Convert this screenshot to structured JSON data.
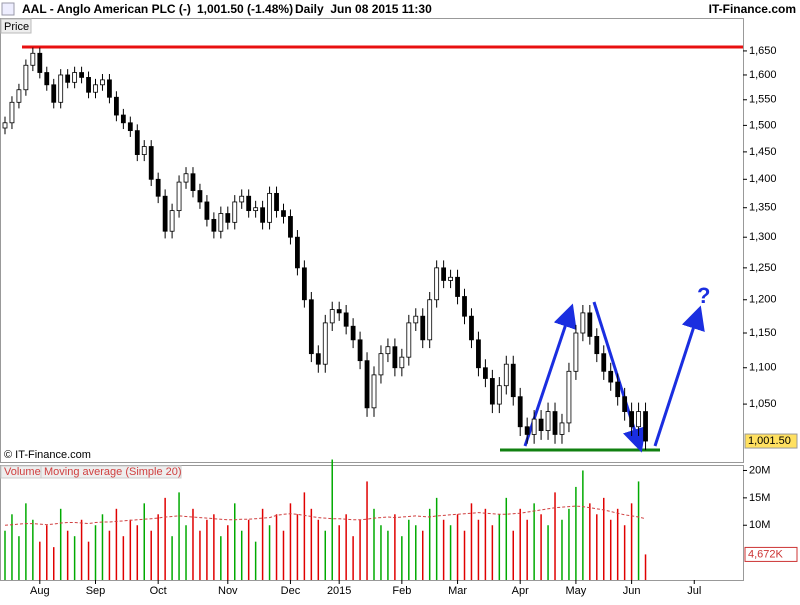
{
  "chart_data": {
    "type": "candlestick",
    "title": "AAL - Anglo American PLC (-)",
    "last_change": "1,001.50 (-1.48%)",
    "period": "Daily  Jun 08 2015 11:30",
    "brand": "IT-Finance.com",
    "price_label": "Price",
    "copyright": "© IT-Finance.com",
    "last_price_label": "1,001.50",
    "annotation": "?",
    "log_scale": true,
    "up_color": "#00aa00",
    "down_color": "#e00000",
    "categories": [
      null,
      null,
      null,
      null,
      null,
      "Aug",
      null,
      null,
      null,
      null,
      null,
      null,
      null,
      "Sep",
      null,
      null,
      null,
      null,
      null,
      null,
      null,
      null,
      "Oct",
      null,
      null,
      null,
      null,
      null,
      null,
      null,
      null,
      null,
      "Nov",
      null,
      null,
      null,
      null,
      null,
      null,
      null,
      null,
      "Dec",
      null,
      null,
      null,
      null,
      null,
      null,
      "2015",
      null,
      null,
      null,
      null,
      null,
      null,
      null,
      null,
      "Feb",
      null,
      null,
      null,
      null,
      null,
      null,
      null,
      "Mar",
      null,
      null,
      null,
      null,
      null,
      null,
      null,
      null,
      "Apr",
      null,
      null,
      null,
      null,
      null,
      null,
      null,
      "May",
      null,
      null,
      null,
      null,
      null,
      null,
      null,
      "Jun",
      null,
      null,
      null,
      null,
      null,
      null,
      null,
      null,
      "Jul",
      null,
      null,
      null,
      null,
      null,
      null
    ],
    "open": [
      1495,
      1505,
      1545,
      1570,
      1620,
      1645,
      1605,
      1580,
      1545,
      1600,
      1585,
      1605,
      1595,
      1565,
      1580,
      1590,
      1555,
      1520,
      1505,
      1490,
      1445,
      1460,
      1400,
      1370,
      1310,
      1345,
      1395,
      1410,
      1380,
      1360,
      1330,
      1310,
      1340,
      1325,
      1360,
      1370,
      1345,
      1350,
      1325,
      1375,
      1345,
      1335,
      1300,
      1250,
      1200,
      1120,
      1105,
      1165,
      1185,
      1180,
      1160,
      1140,
      1110,
      1045,
      1090,
      1120,
      1130,
      1100,
      1115,
      1165,
      1175,
      1140,
      1200,
      1250,
      1230,
      1235,
      1205,
      1175,
      1140,
      1100,
      1085,
      1050,
      1075,
      1105,
      1060,
      1020,
      1010,
      1030,
      1015,
      1040,
      1010,
      1025,
      1095,
      1150,
      1180,
      1145,
      1120,
      1095,
      1080,
      1060,
      1040,
      1020,
      1040,
      null,
      null,
      null,
      null,
      null,
      null,
      null,
      null,
      null,
      null,
      null,
      null,
      null
    ],
    "high": [
      1517,
      1557,
      1582,
      1632,
      1657,
      1657,
      1617,
      1592,
      1612,
      1612,
      1617,
      1617,
      1607,
      1592,
      1602,
      1602,
      1567,
      1532,
      1517,
      1502,
      1472,
      1472,
      1412,
      1382,
      1357,
      1407,
      1422,
      1422,
      1392,
      1372,
      1342,
      1352,
      1352,
      1372,
      1382,
      1382,
      1362,
      1362,
      1387,
      1387,
      1357,
      1347,
      1312,
      1262,
      1212,
      1132,
      1177,
      1197,
      1197,
      1192,
      1172,
      1152,
      1122,
      1102,
      1132,
      1142,
      1142,
      1127,
      1177,
      1187,
      1187,
      1212,
      1262,
      1262,
      1247,
      1247,
      1217,
      1187,
      1152,
      1112,
      1097,
      1087,
      1117,
      1117,
      1072,
      1032,
      1042,
      1042,
      1052,
      1052,
      1037,
      1107,
      1162,
      1192,
      1192,
      1157,
      1132,
      1107,
      1092,
      1072,
      1052,
      1052,
      1052,
      null,
      null,
      null,
      null,
      null,
      null,
      null,
      null,
      null,
      null,
      null,
      null,
      null
    ],
    "low": [
      1483,
      1493,
      1533,
      1558,
      1608,
      1593,
      1568,
      1533,
      1533,
      1573,
      1573,
      1583,
      1553,
      1553,
      1568,
      1543,
      1508,
      1493,
      1478,
      1433,
      1433,
      1388,
      1358,
      1298,
      1298,
      1333,
      1383,
      1368,
      1348,
      1318,
      1298,
      1298,
      1313,
      1313,
      1348,
      1333,
      1333,
      1313,
      1313,
      1333,
      1323,
      1288,
      1238,
      1188,
      1108,
      1093,
      1093,
      1153,
      1168,
      1148,
      1128,
      1098,
      1033,
      1033,
      1078,
      1108,
      1088,
      1088,
      1103,
      1153,
      1128,
      1128,
      1188,
      1218,
      1218,
      1193,
      1163,
      1128,
      1088,
      1073,
      1038,
      1038,
      1063,
      1048,
      1008,
      998,
      998,
      1003,
      1003,
      998,
      998,
      1013,
      1083,
      1138,
      1133,
      1108,
      1083,
      1068,
      1048,
      1028,
      1008,
      1008,
      990,
      null,
      null,
      null,
      null,
      null,
      null,
      null,
      null,
      null,
      null,
      null,
      null,
      null
    ],
    "close": [
      1505,
      1545,
      1570,
      1620,
      1645,
      1605,
      1580,
      1545,
      1600,
      1585,
      1605,
      1595,
      1565,
      1580,
      1590,
      1555,
      1520,
      1505,
      1490,
      1445,
      1460,
      1400,
      1370,
      1310,
      1345,
      1395,
      1410,
      1380,
      1360,
      1330,
      1310,
      1340,
      1325,
      1360,
      1370,
      1345,
      1350,
      1325,
      1375,
      1345,
      1335,
      1300,
      1250,
      1200,
      1120,
      1105,
      1165,
      1185,
      1180,
      1160,
      1140,
      1110,
      1045,
      1090,
      1120,
      1130,
      1100,
      1115,
      1165,
      1175,
      1140,
      1200,
      1250,
      1230,
      1235,
      1205,
      1175,
      1140,
      1100,
      1085,
      1050,
      1075,
      1105,
      1060,
      1020,
      1010,
      1030,
      1015,
      1040,
      1010,
      1025,
      1095,
      1150,
      1180,
      1145,
      1120,
      1095,
      1080,
      1060,
      1040,
      1020,
      1040,
      1001.5,
      null,
      null,
      null,
      null,
      null,
      null,
      null,
      null,
      null,
      null,
      null,
      null,
      null
    ],
    "ylim": [
      975,
      1721
    ],
    "yticks": [
      {
        "value": 1050,
        "label": "1,050"
      },
      {
        "value": 1100,
        "label": "1,100"
      },
      {
        "value": 1150,
        "label": "1,150"
      },
      {
        "value": 1200,
        "label": "1,200"
      },
      {
        "value": 1250,
        "label": "1,250"
      },
      {
        "value": 1300,
        "label": "1,300"
      },
      {
        "value": 1350,
        "label": "1,350"
      },
      {
        "value": 1400,
        "label": "1,400"
      },
      {
        "value": 1450,
        "label": "1,450"
      },
      {
        "value": 1500,
        "label": "1,500"
      },
      {
        "value": 1550,
        "label": "1,550"
      },
      {
        "value": 1600,
        "label": "1,600"
      },
      {
        "value": 1650,
        "label": "1,650"
      }
    ],
    "volume": {
      "title": "Volume",
      "ma_title": "Moving average (Simple 20)",
      "last_volume_label": "4,672K",
      "values": [
        9,
        12,
        8,
        14,
        11,
        7,
        10,
        6,
        13,
        9,
        8,
        11,
        7,
        10,
        12,
        9,
        13,
        8,
        11,
        10,
        14,
        9,
        12,
        15,
        8,
        16,
        10,
        13,
        9,
        11,
        12,
        8,
        10,
        14,
        9,
        11,
        7,
        13,
        10,
        12,
        9,
        14,
        12,
        16,
        13,
        11,
        9,
        22,
        10,
        12,
        8,
        11,
        18,
        13,
        10,
        9,
        12,
        8,
        11,
        10,
        9,
        13,
        15,
        11,
        10,
        12,
        9,
        14,
        11,
        13,
        10,
        12,
        15,
        9,
        13,
        11,
        14,
        12,
        10,
        16,
        11,
        13,
        17,
        20,
        14,
        12,
        15,
        11,
        13,
        10,
        14,
        18,
        4.672,
        null,
        null,
        null,
        null,
        null,
        null,
        null,
        null,
        null,
        null,
        null,
        null,
        null
      ],
      "ma_values": [
        10,
        10.1,
        10.2,
        10.3,
        10.3,
        10.2,
        10.1,
        10.2,
        10.4,
        10.5,
        10.5,
        10.4,
        10.3,
        10.5,
        10.6,
        10.6,
        10.7,
        10.8,
        10.9,
        11,
        11.1,
        11.2,
        11.3,
        11.5,
        11.6,
        11.7,
        11.6,
        11.5,
        11.4,
        11.3,
        11.2,
        11.1,
        11,
        11,
        11.1,
        11.1,
        11.2,
        11.3,
        11.4,
        11.8,
        12,
        12.1,
        12,
        11.8,
        11.6,
        11.4,
        11.3,
        11.2,
        11.2,
        11.1,
        11,
        11,
        11.1,
        11.3,
        11.4,
        11.5,
        11.4,
        11.5,
        11.6,
        11.7,
        11.6,
        11.5,
        11.7,
        11.8,
        11.9,
        12,
        12.1,
        12.2,
        12.3,
        12.2,
        12.1,
        12,
        12,
        12.1,
        12.2,
        12.4,
        12.6,
        12.8,
        13,
        13.2,
        13.3,
        13.4,
        13.5,
        13.4,
        13.2,
        13,
        12.8,
        12.5,
        12.2,
        11.9,
        11.7,
        11.5,
        11.2,
        null,
        null,
        null,
        null,
        null,
        null,
        null,
        null,
        null,
        null,
        null,
        null,
        null
      ],
      "ma_color": "#d04040",
      "ylim": [
        0,
        21
      ],
      "yticks": [
        {
          "value": 10,
          "label": "10M"
        },
        {
          "value": 15,
          "label": "15M"
        },
        {
          "value": 20,
          "label": "20M"
        }
      ]
    }
  }
}
